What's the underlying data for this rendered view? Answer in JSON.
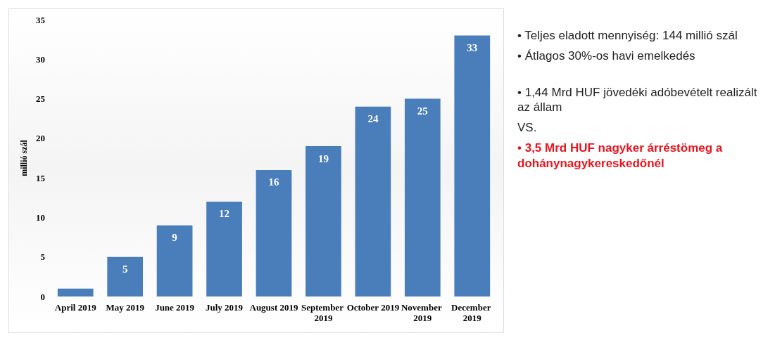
{
  "chart_data": {
    "type": "bar",
    "ylabel": "millió szál",
    "categories": [
      "April 2019",
      "May 2019",
      "June 2019",
      "July 2019",
      "August 2019",
      "September 2019",
      "October 2019",
      "November 2019",
      "December 2019"
    ],
    "values": [
      1,
      5,
      9,
      12,
      16,
      19,
      24,
      25,
      33
    ],
    "value_labels": [
      null,
      "5",
      "9",
      "12",
      "16",
      "19",
      "24",
      "25",
      "33"
    ],
    "color": "#4a7ebb",
    "ylim": [
      0,
      35
    ],
    "yticks": [
      0,
      5,
      10,
      15,
      20,
      25,
      30,
      35
    ],
    "grid": false,
    "annotations": [
      "•  Teljes eladott mennyiség: 144 millió szál",
      "•  Átlagos 30%-os havi emelkedés",
      "•  1,44 Mrd HUF jövedéki adóbevételt realizált az állam",
      "VS.",
      "•  3,5 Mrd HUF nagyker árréstömeg a dohánynagykereskedőnél"
    ]
  }
}
